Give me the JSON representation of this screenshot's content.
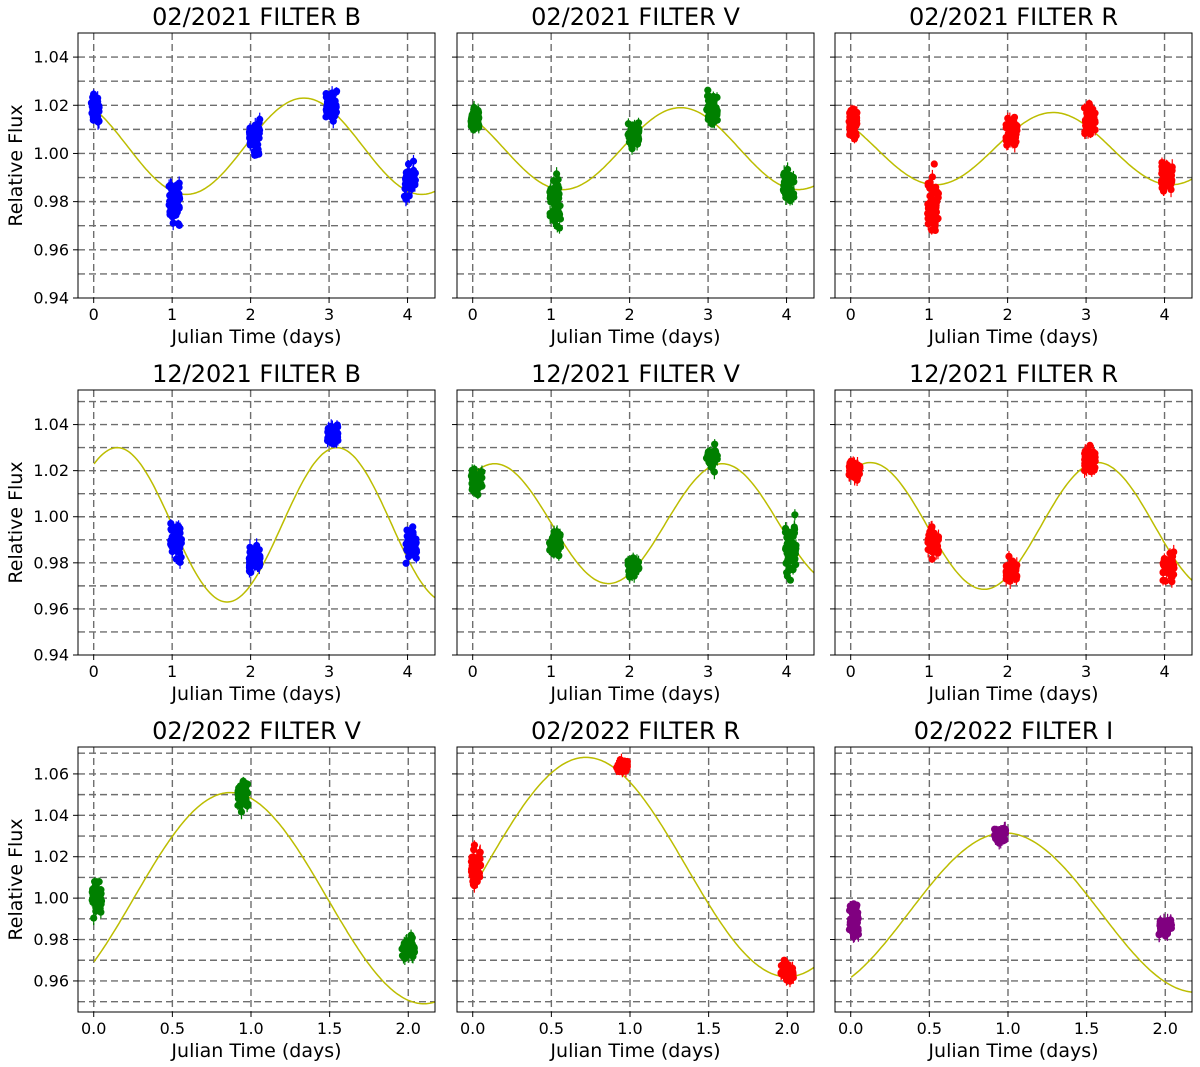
{
  "chart_data": [
    {
      "type": "scatter",
      "title": "02/2021 FILTER B",
      "xlabel": "Julian Time (days)",
      "ylabel": "Relative Flux",
      "xlim": [
        -0.2,
        4.35
      ],
      "ylim": [
        0.94,
        1.05
      ],
      "xticks": [
        "0",
        "1",
        "2",
        "3",
        "4"
      ],
      "yticks": [
        "0.94",
        "0.96",
        "0.98",
        "1.00",
        "1.02",
        "1.04"
      ],
      "grid": true,
      "marker_color": "#0000ff",
      "clusters": [
        {
          "x_center": 0.02,
          "x_spread": 0.05,
          "y_center": 1.018,
          "y_spread": 0.01
        },
        {
          "x_center": 1.03,
          "x_spread": 0.07,
          "y_center": 0.98,
          "y_spread": 0.02
        },
        {
          "x_center": 2.05,
          "x_spread": 0.07,
          "y_center": 1.007,
          "y_spread": 0.013
        },
        {
          "x_center": 3.03,
          "x_spread": 0.07,
          "y_center": 1.02,
          "y_spread": 0.011
        },
        {
          "x_center": 4.03,
          "x_spread": 0.07,
          "y_center": 0.989,
          "y_spread": 0.012
        }
      ],
      "fit": {
        "color": "#bcbd00",
        "mean": 1.003,
        "amplitude": 0.02,
        "period": 3.0,
        "peak_x": 2.68
      }
    },
    {
      "type": "scatter",
      "title": "02/2021 FILTER V",
      "xlabel": "Julian Time (days)",
      "ylabel": "",
      "xlim": [
        -0.2,
        4.35
      ],
      "ylim": [
        0.94,
        1.05
      ],
      "xticks": [
        "0",
        "1",
        "2",
        "3",
        "4"
      ],
      "yticks": [],
      "grid": true,
      "marker_color": "#008000",
      "clusters": [
        {
          "x_center": 0.03,
          "x_spread": 0.05,
          "y_center": 1.014,
          "y_spread": 0.009
        },
        {
          "x_center": 1.05,
          "x_spread": 0.07,
          "y_center": 0.98,
          "y_spread": 0.018
        },
        {
          "x_center": 2.05,
          "x_spread": 0.07,
          "y_center": 1.007,
          "y_spread": 0.01
        },
        {
          "x_center": 3.05,
          "x_spread": 0.07,
          "y_center": 1.018,
          "y_spread": 0.014
        },
        {
          "x_center": 4.03,
          "x_spread": 0.07,
          "y_center": 0.987,
          "y_spread": 0.011
        }
      ],
      "fit": {
        "color": "#bcbd00",
        "mean": 1.002,
        "amplitude": 0.017,
        "period": 3.0,
        "peak_x": 2.65
      }
    },
    {
      "type": "scatter",
      "title": "02/2021 FILTER R",
      "xlabel": "Julian Time (days)",
      "ylabel": "",
      "xlim": [
        -0.2,
        4.35
      ],
      "ylim": [
        0.94,
        1.05
      ],
      "xticks": [
        "0",
        "1",
        "2",
        "3",
        "4"
      ],
      "yticks": [],
      "grid": true,
      "marker_color": "#ff0000",
      "clusters": [
        {
          "x_center": 0.03,
          "x_spread": 0.05,
          "y_center": 1.012,
          "y_spread": 0.01
        },
        {
          "x_center": 1.05,
          "x_spread": 0.07,
          "y_center": 0.98,
          "y_spread": 0.02
        },
        {
          "x_center": 2.05,
          "x_spread": 0.07,
          "y_center": 1.009,
          "y_spread": 0.01
        },
        {
          "x_center": 3.05,
          "x_spread": 0.07,
          "y_center": 1.014,
          "y_spread": 0.011
        },
        {
          "x_center": 4.03,
          "x_spread": 0.07,
          "y_center": 0.99,
          "y_spread": 0.011
        }
      ],
      "fit": {
        "color": "#bcbd00",
        "mean": 1.002,
        "amplitude": 0.015,
        "period": 3.0,
        "peak_x": 2.58
      }
    },
    {
      "type": "scatter",
      "title": "12/2021 FILTER B",
      "xlabel": "Julian Time (days)",
      "ylabel": "Relative Flux",
      "xlim": [
        -0.2,
        4.35
      ],
      "ylim": [
        0.94,
        1.055
      ],
      "xticks": [
        "0",
        "1",
        "2",
        "3",
        "4"
      ],
      "yticks": [
        "0.94",
        "0.96",
        "0.98",
        "1.00",
        "1.02",
        "1.04"
      ],
      "grid": true,
      "marker_color": "#0000ff",
      "clusters": [
        {
          "x_center": 1.05,
          "x_spread": 0.07,
          "y_center": 0.99,
          "y_spread": 0.015
        },
        {
          "x_center": 2.05,
          "x_spread": 0.07,
          "y_center": 0.982,
          "y_spread": 0.011
        },
        {
          "x_center": 3.05,
          "x_spread": 0.07,
          "y_center": 1.036,
          "y_spread": 0.007
        },
        {
          "x_center": 4.05,
          "x_spread": 0.07,
          "y_center": 0.988,
          "y_spread": 0.013
        }
      ],
      "fit": {
        "color": "#bcbd00",
        "mean": 0.9965,
        "amplitude": 0.0335,
        "period": 2.8,
        "peak_x": 0.3
      }
    },
    {
      "type": "scatter",
      "title": "12/2021 FILTER V",
      "xlabel": "Julian Time (days)",
      "ylabel": "",
      "xlim": [
        -0.2,
        4.35
      ],
      "ylim": [
        0.94,
        1.055
      ],
      "xticks": [
        "0",
        "1",
        "2",
        "3",
        "4"
      ],
      "yticks": [],
      "grid": true,
      "marker_color": "#008000",
      "clusters": [
        {
          "x_center": 0.05,
          "x_spread": 0.07,
          "y_center": 1.016,
          "y_spread": 0.008
        },
        {
          "x_center": 1.05,
          "x_spread": 0.07,
          "y_center": 0.989,
          "y_spread": 0.01
        },
        {
          "x_center": 2.05,
          "x_spread": 0.07,
          "y_center": 0.978,
          "y_spread": 0.008
        },
        {
          "x_center": 3.05,
          "x_spread": 0.07,
          "y_center": 1.025,
          "y_spread": 0.008
        },
        {
          "x_center": 4.05,
          "x_spread": 0.07,
          "y_center": 0.985,
          "y_spread": 0.02
        }
      ],
      "fit": {
        "color": "#bcbd00",
        "mean": 0.997,
        "amplitude": 0.026,
        "period": 2.9,
        "peak_x": 0.28
      }
    },
    {
      "type": "scatter",
      "title": "12/2021 FILTER R",
      "xlabel": "Julian Time (days)",
      "ylabel": "",
      "xlim": [
        -0.2,
        4.35
      ],
      "ylim": [
        0.94,
        1.055
      ],
      "xticks": [
        "0",
        "1",
        "2",
        "3",
        "4"
      ],
      "yticks": [],
      "grid": true,
      "marker_color": "#ff0000",
      "clusters": [
        {
          "x_center": 0.05,
          "x_spread": 0.07,
          "y_center": 1.02,
          "y_spread": 0.008
        },
        {
          "x_center": 1.05,
          "x_spread": 0.07,
          "y_center": 0.99,
          "y_spread": 0.01
        },
        {
          "x_center": 2.05,
          "x_spread": 0.07,
          "y_center": 0.976,
          "y_spread": 0.009
        },
        {
          "x_center": 3.05,
          "x_spread": 0.07,
          "y_center": 1.025,
          "y_spread": 0.01
        },
        {
          "x_center": 4.05,
          "x_spread": 0.07,
          "y_center": 0.978,
          "y_spread": 0.011
        }
      ],
      "fit": {
        "color": "#bcbd00",
        "mean": 0.996,
        "amplitude": 0.0275,
        "period": 2.9,
        "peak_x": 0.25
      }
    },
    {
      "type": "scatter",
      "title": "02/2022 FILTER V",
      "xlabel": "Julian Time (days)",
      "ylabel": "Relative Flux",
      "xlim": [
        -0.1,
        2.17
      ],
      "ylim": [
        0.945,
        1.073
      ],
      "xticks": [
        "0.0",
        "0.5",
        "1.0",
        "1.5",
        "2.0"
      ],
      "yticks": [
        "0.96",
        "0.98",
        "1.00",
        "1.02",
        "1.04",
        "1.06"
      ],
      "grid": true,
      "marker_color": "#008000",
      "clusters": [
        {
          "x_center": 0.02,
          "x_spread": 0.03,
          "y_center": 1.0,
          "y_spread": 0.016
        },
        {
          "x_center": 0.95,
          "x_spread": 0.035,
          "y_center": 1.05,
          "y_spread": 0.012
        },
        {
          "x_center": 2.0,
          "x_spread": 0.04,
          "y_center": 0.976,
          "y_spread": 0.009
        }
      ],
      "fit": {
        "color": "#bcbd00",
        "mean": 1.0,
        "amplitude": 0.051,
        "period": 2.46,
        "peak_x": 0.87
      }
    },
    {
      "type": "scatter",
      "title": "02/2022 FILTER R",
      "xlabel": "Julian Time (days)",
      "ylabel": "",
      "xlim": [
        -0.1,
        2.17
      ],
      "ylim": [
        0.945,
        1.073
      ],
      "xticks": [
        "0.0",
        "0.5",
        "1.0",
        "1.5",
        "2.0"
      ],
      "yticks": [],
      "grid": true,
      "marker_color": "#ff0000",
      "clusters": [
        {
          "x_center": 0.02,
          "x_spread": 0.03,
          "y_center": 1.015,
          "y_spread": 0.016
        },
        {
          "x_center": 0.95,
          "x_spread": 0.035,
          "y_center": 1.064,
          "y_spread": 0.005
        },
        {
          "x_center": 2.0,
          "x_spread": 0.04,
          "y_center": 0.965,
          "y_spread": 0.008
        }
      ],
      "fit": {
        "color": "#bcbd00",
        "mean": 1.015,
        "amplitude": 0.053,
        "period": 2.56,
        "peak_x": 0.72
      }
    },
    {
      "type": "scatter",
      "title": "02/2022 FILTER I",
      "xlabel": "Julian Time (days)",
      "ylabel": "",
      "xlim": [
        -0.1,
        2.17
      ],
      "ylim": [
        0.945,
        1.073
      ],
      "xticks": [
        "0.0",
        "0.5",
        "1.0",
        "1.5",
        "2.0"
      ],
      "yticks": [],
      "grid": true,
      "marker_color": "#800080",
      "clusters": [
        {
          "x_center": 0.02,
          "x_spread": 0.03,
          "y_center": 0.988,
          "y_spread": 0.016
        },
        {
          "x_center": 0.95,
          "x_spread": 0.035,
          "y_center": 1.031,
          "y_spread": 0.007
        },
        {
          "x_center": 2.0,
          "x_spread": 0.04,
          "y_center": 0.986,
          "y_spread": 0.006
        }
      ],
      "fit": {
        "color": "#bcbd00",
        "mean": 0.993,
        "amplitude": 0.0385,
        "period": 2.44,
        "peak_x": 0.98
      }
    }
  ],
  "gridlines": {
    "y": [
      0.95,
      0.96,
      0.97,
      0.98,
      0.99,
      1.0,
      1.01,
      1.02,
      1.03,
      1.04,
      1.05,
      1.06,
      1.07
    ]
  }
}
